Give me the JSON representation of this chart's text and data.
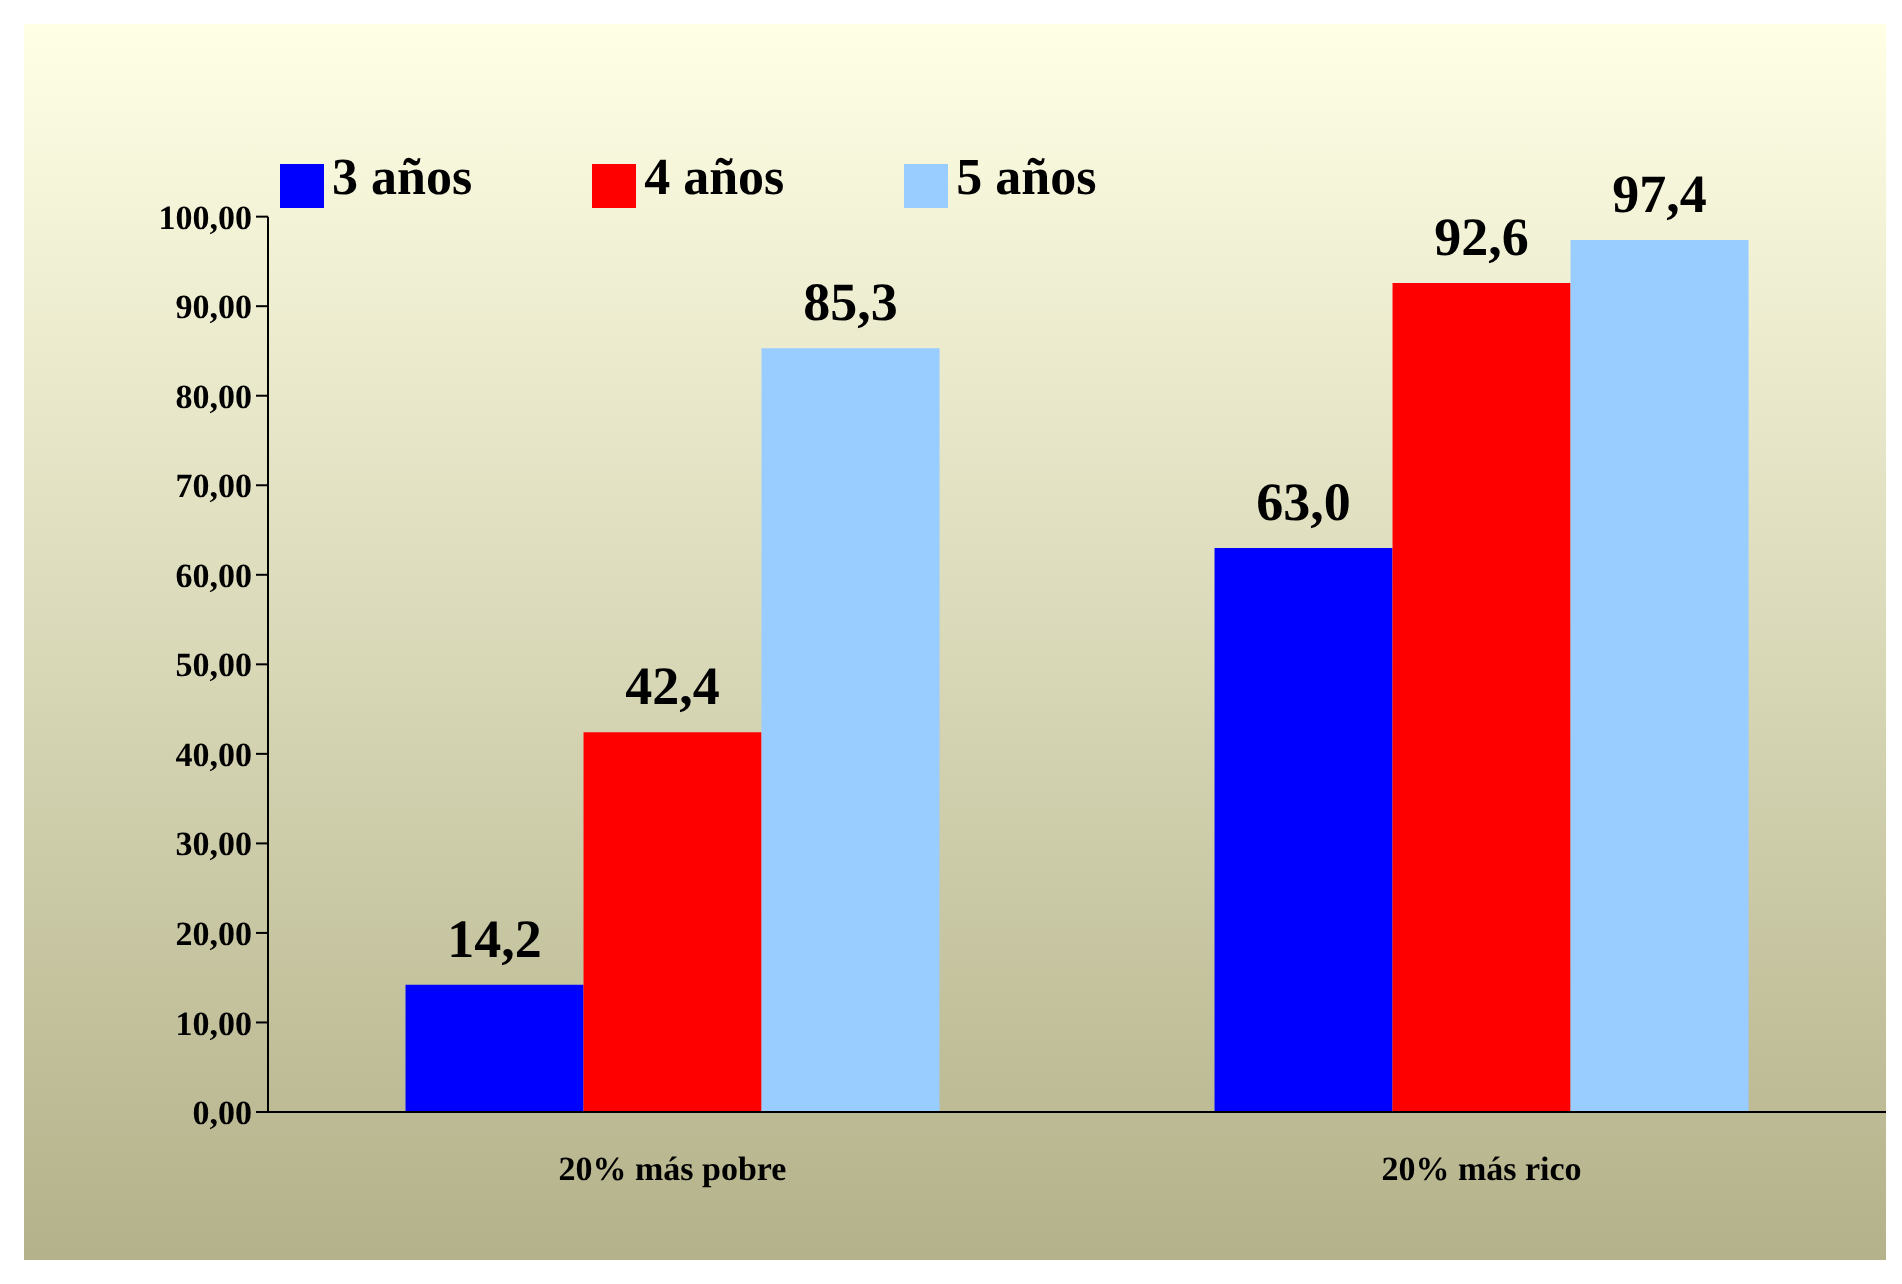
{
  "chart_data": {
    "type": "bar",
    "categories": [
      "20% más pobre",
      "20% más rico"
    ],
    "series": [
      {
        "name": "3 años",
        "color": "#0000ff",
        "values": [
          14.2,
          63.0
        ],
        "value_labels": [
          "14,2",
          "63,0"
        ]
      },
      {
        "name": "4 años",
        "color": "#ff0000",
        "values": [
          42.4,
          92.6
        ],
        "value_labels": [
          "42,4",
          "92,6"
        ]
      },
      {
        "name": "5 años",
        "color": "#99ccff",
        "values": [
          85.3,
          97.4
        ],
        "value_labels": [
          "85,3",
          "97,4"
        ]
      }
    ],
    "ylim": [
      0,
      100
    ],
    "yticks": [
      {
        "value": 0,
        "label": "0,00"
      },
      {
        "value": 10,
        "label": "10,00"
      },
      {
        "value": 20,
        "label": "20,00"
      },
      {
        "value": 30,
        "label": "30,00"
      },
      {
        "value": 40,
        "label": "40,00"
      },
      {
        "value": 50,
        "label": "50,00"
      },
      {
        "value": 60,
        "label": "60,00"
      },
      {
        "value": 70,
        "label": "70,00"
      },
      {
        "value": 80,
        "label": "80,00"
      },
      {
        "value": 90,
        "label": "90,00"
      },
      {
        "value": 100,
        "label": "100,00"
      }
    ],
    "grid": false,
    "legend": "top left"
  }
}
